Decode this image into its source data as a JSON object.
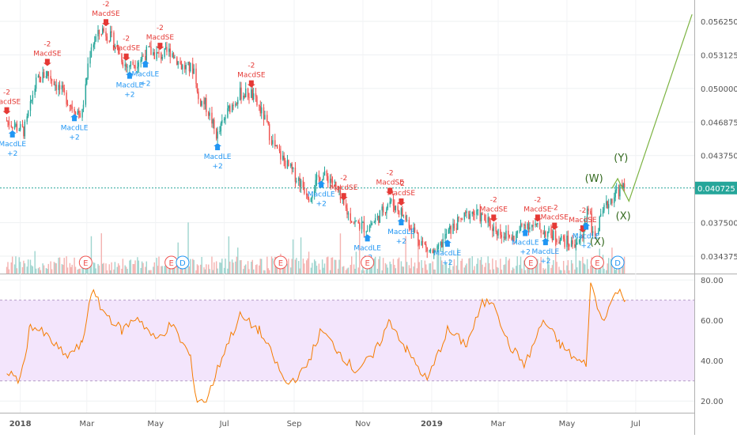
{
  "colors": {
    "up": "#26a69a",
    "down": "#ef5350",
    "rsi_line": "#f57c00",
    "rsi_band": "#f3e5fc",
    "last_price_bg": "#26a69a",
    "buy_arrow": "#2196f3",
    "sell_arrow": "#e53935",
    "wave_line": "#7cb342",
    "wave_label": "#33691e",
    "earnings": "#ef5350",
    "dividend": "#2196f3",
    "axis_text": "#555555"
  },
  "chart_data": [
    {
      "type": "candlestick",
      "title": "",
      "x_tick_labels": [
        "2018",
        "Mar",
        "May",
        "Jul",
        "Sep",
        "Nov",
        "2019",
        "Mar",
        "May",
        "Jul"
      ],
      "y_tick_labels": [
        "0.056250",
        "0.053125",
        "0.050000",
        "0.046875",
        "0.043750",
        "0.037500",
        "0.034375"
      ],
      "ylim": [
        0.0332,
        0.0575
      ],
      "last_price_label": "0.040725",
      "grid": true,
      "price_path": [
        [
          "2017-12-20",
          0.047
        ],
        [
          "2018-01-05",
          0.046
        ],
        [
          "2018-01-15",
          0.0505
        ],
        [
          "2018-01-25",
          0.0515
        ],
        [
          "2018-02-05",
          0.05
        ],
        [
          "2018-02-15",
          0.0485
        ],
        [
          "2018-02-25",
          0.0475
        ],
        [
          "2018-03-05",
          0.054
        ],
        [
          "2018-03-15",
          0.0555
        ],
        [
          "2018-03-25",
          0.0545
        ],
        [
          "2018-04-05",
          0.052
        ],
        [
          "2018-04-15",
          0.0525
        ],
        [
          "2018-04-25",
          0.0535
        ],
        [
          "2018-05-05",
          0.053
        ],
        [
          "2018-05-15",
          0.0535
        ],
        [
          "2018-05-25",
          0.052
        ],
        [
          "2018-06-05",
          0.0518
        ],
        [
          "2018-06-08",
          0.049
        ],
        [
          "2018-06-15",
          0.0485
        ],
        [
          "2018-06-25",
          0.0455
        ],
        [
          "2018-07-05",
          0.048
        ],
        [
          "2018-07-15",
          0.0495
        ],
        [
          "2018-07-25",
          0.0495
        ],
        [
          "2018-08-05",
          0.0475
        ],
        [
          "2018-08-15",
          0.0445
        ],
        [
          "2018-08-25",
          0.043
        ],
        [
          "2018-09-05",
          0.0415
        ],
        [
          "2018-09-15",
          0.04
        ],
        [
          "2018-09-25",
          0.042
        ],
        [
          "2018-10-05",
          0.0415
        ],
        [
          "2018-10-15",
          0.039
        ],
        [
          "2018-10-25",
          0.0375
        ],
        [
          "2018-11-05",
          0.037
        ],
        [
          "2018-11-15",
          0.038
        ],
        [
          "2018-11-25",
          0.0395
        ],
        [
          "2018-12-05",
          0.0385
        ],
        [
          "2018-12-15",
          0.037
        ],
        [
          "2018-12-28",
          0.035
        ],
        [
          "2019-01-05",
          0.0345
        ],
        [
          "2019-01-15",
          0.0365
        ],
        [
          "2019-01-25",
          0.0375
        ],
        [
          "2019-02-05",
          0.0385
        ],
        [
          "2019-02-15",
          0.038
        ],
        [
          "2019-02-25",
          0.037
        ],
        [
          "2019-03-05",
          0.0365
        ],
        [
          "2019-03-15",
          0.036
        ],
        [
          "2019-03-25",
          0.0375
        ],
        [
          "2019-04-05",
          0.037
        ],
        [
          "2019-04-15",
          0.0365
        ],
        [
          "2019-04-25",
          0.036
        ],
        [
          "2019-05-05",
          0.0355
        ],
        [
          "2019-05-15",
          0.036
        ],
        [
          "2019-05-20",
          0.0395
        ],
        [
          "2019-05-25",
          0.036
        ],
        [
          "2019-06-05",
          0.039
        ],
        [
          "2019-06-15",
          0.0405
        ],
        [
          "2019-06-22",
          0.0407
        ]
      ],
      "earnings_markers": [
        "2018-02-28",
        "2018-05-15",
        "2018-08-20",
        "2018-11-05",
        "2019-03-30",
        "2019-05-28"
      ],
      "dividend_markers": [
        "2018-05-25",
        "2019-06-15"
      ],
      "signals": [
        {
          "date": "2017-12-20",
          "kind": "sell",
          "text": "MacdSE",
          "value": "-2"
        },
        {
          "date": "2017-12-25",
          "kind": "buy",
          "text": "MacdLE",
          "value": "+2"
        },
        {
          "date": "2018-01-25",
          "kind": "sell",
          "text": "MacdSE",
          "value": "-2"
        },
        {
          "date": "2018-02-18",
          "kind": "buy",
          "text": "MacdLE",
          "value": "+2"
        },
        {
          "date": "2018-03-18",
          "kind": "sell",
          "text": "MacdSE",
          "value": "-2"
        },
        {
          "date": "2018-04-05",
          "kind": "sell",
          "text": "MacdSE",
          "value": "-2"
        },
        {
          "date": "2018-04-08",
          "kind": "buy",
          "text": "MacdLE",
          "value": "+2"
        },
        {
          "date": "2018-04-22",
          "kind": "buy",
          "text": "MacdLE",
          "value": "+2"
        },
        {
          "date": "2018-05-05",
          "kind": "sell",
          "text": "MacdSE",
          "value": "-2"
        },
        {
          "date": "2018-06-25",
          "kind": "buy",
          "text": "MacdLE",
          "value": "+2"
        },
        {
          "date": "2018-07-25",
          "kind": "sell",
          "text": "MacdSE",
          "value": "-2"
        },
        {
          "date": "2018-09-25",
          "kind": "buy",
          "text": "MacdLE",
          "value": "+2"
        },
        {
          "date": "2018-10-15",
          "kind": "sell",
          "text": "MacdSE",
          "value": "-2"
        },
        {
          "date": "2018-11-05",
          "kind": "buy",
          "text": "MacdLE",
          "value": "+2"
        },
        {
          "date": "2018-11-25",
          "kind": "sell",
          "text": "MacdSE",
          "value": "-2"
        },
        {
          "date": "2018-12-05",
          "kind": "sell",
          "text": "MacdSE",
          "value": "-2"
        },
        {
          "date": "2018-12-05",
          "kind": "buy",
          "text": "MacdLE",
          "value": "+2"
        },
        {
          "date": "2019-01-15",
          "kind": "buy",
          "text": "MacdLE",
          "value": "+2"
        },
        {
          "date": "2019-02-25",
          "kind": "sell",
          "text": "MacdSE",
          "value": "-2"
        },
        {
          "date": "2019-03-25",
          "kind": "buy",
          "text": "MacdLE",
          "value": "+2"
        },
        {
          "date": "2019-04-05",
          "kind": "sell",
          "text": "MacdSE",
          "value": "-2"
        },
        {
          "date": "2019-04-12",
          "kind": "buy",
          "text": "MacdLE",
          "value": "+2"
        },
        {
          "date": "2019-04-20",
          "kind": "sell",
          "text": "MacdSE",
          "value": "-2"
        },
        {
          "date": "2019-05-15",
          "kind": "sell",
          "text": "MacdSE",
          "value": "-2"
        },
        {
          "date": "2019-05-18",
          "kind": "buy",
          "text": "MacdLE",
          "value": "+2"
        }
      ],
      "wave_labels": [
        {
          "date": "2019-05-25",
          "price": 0.0413,
          "text": "(W)"
        },
        {
          "date": "2019-05-28",
          "price": 0.0354,
          "text": "(X)"
        },
        {
          "date": "2019-06-18",
          "price": 0.0432,
          "text": "(Y)"
        },
        {
          "date": "2019-06-20",
          "price": 0.0378,
          "text": "(X)"
        }
      ],
      "projection": [
        [
          "2019-06-10",
          0.0407
        ],
        [
          "2019-06-15",
          0.0416
        ],
        [
          "2019-06-25",
          0.0395
        ],
        [
          "2019-08-20",
          0.0569
        ]
      ]
    },
    {
      "type": "line",
      "title": "",
      "y_tick_labels": [
        "80.00",
        "60.00",
        "40.00",
        "20.00"
      ],
      "ylim": [
        15,
        82
      ],
      "band": [
        30,
        70
      ],
      "series": [
        {
          "points": [
            [
              "2017-12-20",
              35
            ],
            [
              "2018-01-01",
              30
            ],
            [
              "2018-01-10",
              58
            ],
            [
              "2018-01-25",
              52
            ],
            [
              "2018-02-10",
              42
            ],
            [
              "2018-02-25",
              48
            ],
            [
              "2018-03-05",
              75
            ],
            [
              "2018-03-15",
              65
            ],
            [
              "2018-04-01",
              55
            ],
            [
              "2018-04-15",
              62
            ],
            [
              "2018-05-01",
              50
            ],
            [
              "2018-05-15",
              58
            ],
            [
              "2018-06-01",
              42
            ],
            [
              "2018-06-05",
              22
            ],
            [
              "2018-06-15",
              20
            ],
            [
              "2018-07-01",
              45
            ],
            [
              "2018-07-15",
              62
            ],
            [
              "2018-08-01",
              55
            ],
            [
              "2018-08-15",
              40
            ],
            [
              "2018-08-25",
              28
            ],
            [
              "2018-09-10",
              35
            ],
            [
              "2018-09-25",
              55
            ],
            [
              "2018-10-10",
              45
            ],
            [
              "2018-10-25",
              35
            ],
            [
              "2018-11-10",
              42
            ],
            [
              "2018-11-25",
              60
            ],
            [
              "2018-12-10",
              45
            ],
            [
              "2018-12-28",
              30
            ],
            [
              "2019-01-15",
              55
            ],
            [
              "2019-02-01",
              48
            ],
            [
              "2019-02-15",
              68
            ],
            [
              "2019-02-25",
              70
            ],
            [
              "2019-03-10",
              48
            ],
            [
              "2019-03-25",
              38
            ],
            [
              "2019-04-10",
              60
            ],
            [
              "2019-04-25",
              48
            ],
            [
              "2019-05-10",
              40
            ],
            [
              "2019-05-18",
              38
            ],
            [
              "2019-05-22",
              78
            ],
            [
              "2019-06-01",
              60
            ],
            [
              "2019-06-15",
              75
            ],
            [
              "2019-06-22",
              70
            ]
          ]
        }
      ]
    }
  ]
}
